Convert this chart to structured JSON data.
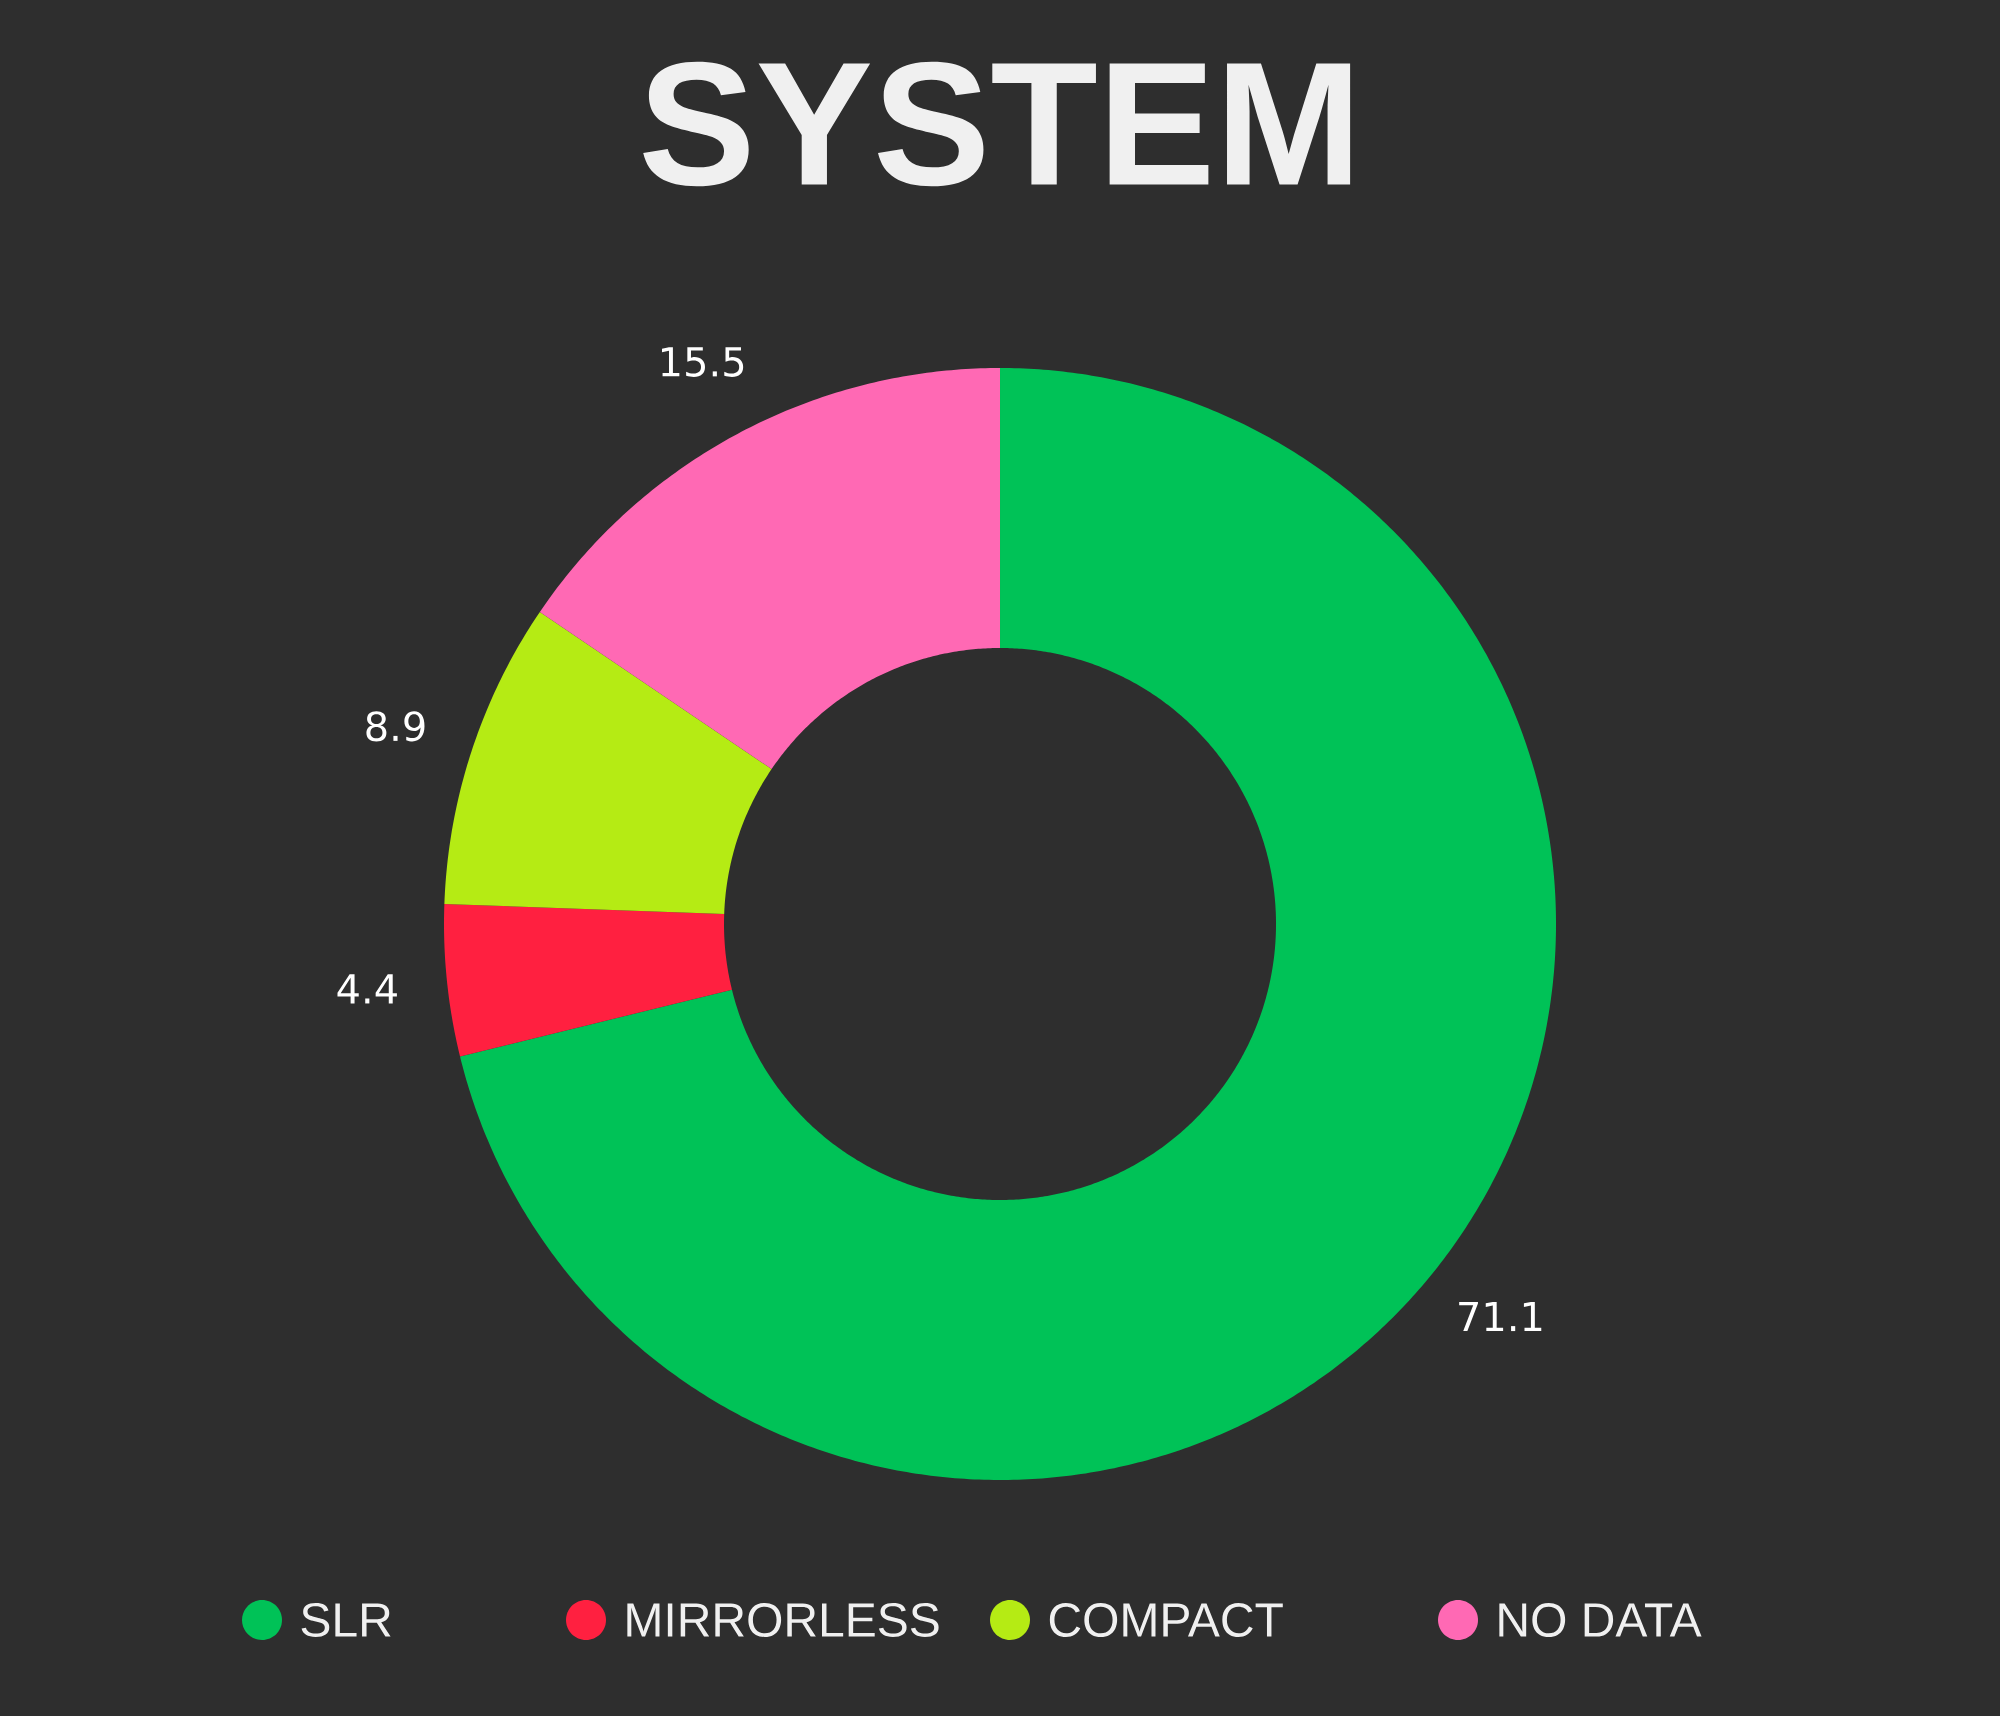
{
  "chart_data": {
    "type": "donut",
    "title": "SYSTEM",
    "categories": [
      "SLR",
      "MIRRORLESS",
      "COMPACT",
      "NO DATA"
    ],
    "values": [
      71.1,
      4.4,
      8.9,
      15.5
    ],
    "colors": [
      "#00c257",
      "#ff2040",
      "#b5eb14",
      "#ff69b4"
    ],
    "data_labels": true,
    "legend": "bottom"
  }
}
